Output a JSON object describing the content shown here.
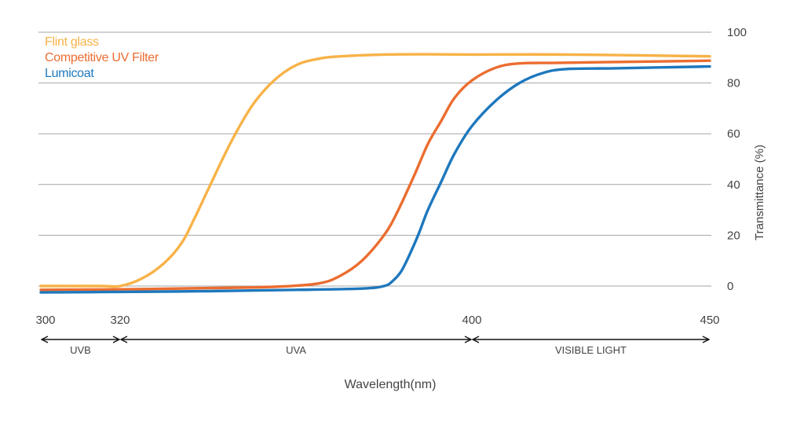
{
  "chart_data": {
    "type": "line",
    "xlabel": "Wavelength(nm)",
    "ylabel": "Transmittance (%)",
    "xlim": [
      300,
      450
    ],
    "ylim": [
      0,
      100
    ],
    "x_ticks": [
      "300",
      "320",
      "400",
      "450"
    ],
    "y_ticks": [
      "0",
      "20",
      "40",
      "60",
      "80",
      "100"
    ],
    "grid": "horizontal",
    "legend_position": "top-left",
    "regions": [
      {
        "label": "UVB",
        "from": 300,
        "to": 320
      },
      {
        "label": "UVA",
        "from": 320,
        "to": 400
      },
      {
        "label": "VISIBLE LIGHT",
        "from": 400,
        "to": 450
      }
    ],
    "series": [
      {
        "name": "Flint glass",
        "color": "#f7b247",
        "x": [
          300,
          315,
          320,
          325,
          330,
          334,
          337,
          340,
          345,
          350,
          355,
          360,
          365,
          370,
          380,
          390,
          400,
          420,
          450
        ],
        "y": [
          0,
          0,
          0,
          3,
          9,
          17,
          27,
          38,
          56,
          71,
          81,
          87,
          89.5,
          90.5,
          91.2,
          91.3,
          91.2,
          91.2,
          90.5
        ]
      },
      {
        "name": "Competitive UV Filter",
        "color": "#eb6d30",
        "x": [
          300,
          320,
          340,
          355,
          365,
          370,
          375,
          380,
          383,
          387,
          390,
          393,
          396,
          400,
          405,
          410,
          420,
          450
        ],
        "y": [
          -1.5,
          -1.3,
          -0.8,
          -0.3,
          1,
          4,
          10,
          20,
          29,
          44,
          56,
          65,
          74,
          81,
          86,
          87.7,
          88,
          88.8
        ]
      },
      {
        "name": "Lumicoat",
        "color": "#1e78bd",
        "x": [
          300,
          320,
          340,
          360,
          375,
          380,
          382,
          384,
          386,
          388,
          390,
          393,
          396,
          400,
          405,
          410,
          415,
          420,
          430,
          450
        ],
        "y": [
          -2.5,
          -2.3,
          -2,
          -1.5,
          -1,
          0,
          2,
          6,
          13,
          21,
          30,
          41,
          52,
          63,
          73,
          80,
          84,
          85.5,
          85.8,
          86.5
        ]
      }
    ]
  }
}
